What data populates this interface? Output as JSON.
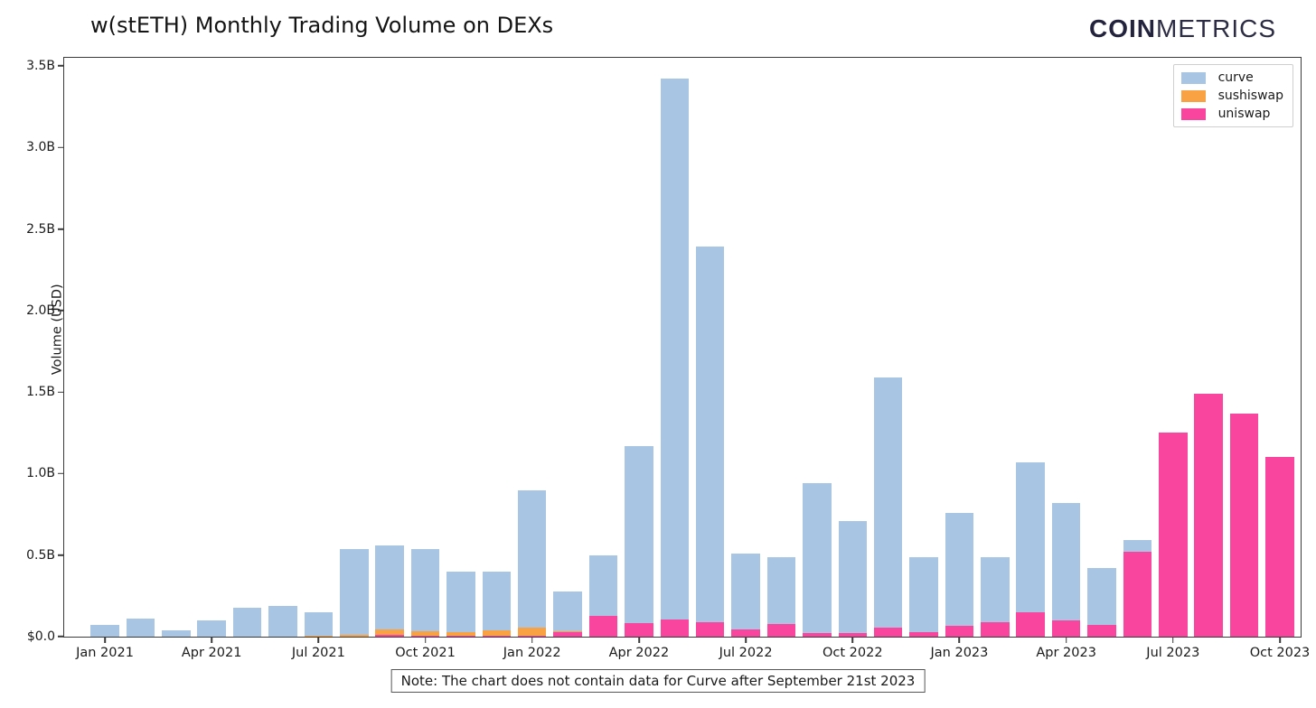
{
  "title": "w(stETH) Monthly Trading Volume on DEXs",
  "logo": {
    "bold": "COIN",
    "light": "METRICS"
  },
  "note": "Note: The chart does not contain data for Curve after September 21st 2023",
  "y_axis": {
    "label": "Volume (USD)",
    "ticks": [
      "$0.0",
      "0.5B",
      "1.0B",
      "1.5B",
      "2.0B",
      "2.5B",
      "3.0B",
      "3.5B"
    ],
    "tick_step_b": 0.5,
    "max_b": 3.55
  },
  "chart_data": {
    "type": "bar",
    "stacked": true,
    "title": "w(stETH) Monthly Trading Volume on DEXs",
    "xlabel": "",
    "ylabel": "Volume (USD)",
    "ylim_billions": [
      0,
      3.55
    ],
    "grid": false,
    "units": "billions USD",
    "categories": [
      "Jan 2021",
      "Feb 2021",
      "Mar 2021",
      "Apr 2021",
      "May 2021",
      "Jun 2021",
      "Jul 2021",
      "Aug 2021",
      "Sep 2021",
      "Oct 2021",
      "Nov 2021",
      "Dec 2021",
      "Jan 2022",
      "Feb 2022",
      "Mar 2022",
      "Apr 2022",
      "May 2022",
      "Jun 2022",
      "Jul 2022",
      "Aug 2022",
      "Sep 2022",
      "Oct 2022",
      "Nov 2022",
      "Dec 2022",
      "Jan 2023",
      "Feb 2023",
      "Mar 2023",
      "Apr 2023",
      "May 2023",
      "Jun 2023",
      "Jul 2023",
      "Aug 2023",
      "Sep 2023",
      "Oct 2023"
    ],
    "x_tick_labels": [
      "Jan 2021",
      "Apr 2021",
      "Jul 2021",
      "Oct 2021",
      "Jan 2022",
      "Apr 2022",
      "Jul 2022",
      "Oct 2022",
      "Jan 2023",
      "Apr 2023",
      "Jul 2023",
      "Oct 2023"
    ],
    "x_tick_every": 3,
    "series": [
      {
        "name": "curve",
        "color": "#a9c5e4",
        "values": [
          0.07,
          0.11,
          0.04,
          0.1,
          0.18,
          0.19,
          0.145,
          0.53,
          0.515,
          0.505,
          0.37,
          0.36,
          0.84,
          0.24,
          0.37,
          1.085,
          3.315,
          2.3,
          0.465,
          0.415,
          0.915,
          0.69,
          1.535,
          0.46,
          0.695,
          0.4,
          0.92,
          0.72,
          0.35,
          0.07,
          0,
          0,
          0,
          0
        ]
      },
      {
        "name": "sushiswap",
        "color": "#f9a244",
        "values": [
          0,
          0,
          0,
          0,
          0,
          0,
          0.005,
          0.01,
          0.035,
          0.03,
          0.025,
          0.035,
          0.05,
          0.005,
          0,
          0,
          0,
          0,
          0,
          0,
          0,
          0,
          0,
          0,
          0,
          0,
          0,
          0,
          0,
          0,
          0,
          0,
          0,
          0
        ]
      },
      {
        "name": "uniswap",
        "color": "#f9459e",
        "values": [
          0,
          0,
          0,
          0,
          0,
          0,
          0,
          0,
          0.01,
          0.005,
          0.005,
          0.005,
          0.005,
          0.03,
          0.13,
          0.085,
          0.105,
          0.09,
          0.045,
          0.075,
          0.025,
          0.02,
          0.055,
          0.03,
          0.065,
          0.09,
          0.15,
          0.1,
          0.07,
          0.52,
          1.25,
          1.49,
          1.37,
          1.1
        ]
      }
    ],
    "stack_order_bottom_to_top": [
      "uniswap",
      "sushiswap",
      "curve"
    ],
    "legend": {
      "position": "upper right",
      "entries": [
        "curve",
        "sushiswap",
        "uniswap"
      ]
    },
    "totals_billions": [
      0.07,
      0.11,
      0.04,
      0.1,
      0.18,
      0.19,
      0.15,
      0.54,
      0.56,
      0.54,
      0.4,
      0.4,
      0.9,
      0.275,
      0.5,
      1.17,
      3.42,
      2.39,
      0.51,
      0.49,
      0.94,
      0.71,
      1.59,
      0.49,
      0.76,
      0.49,
      1.07,
      0.82,
      0.42,
      0.59,
      1.25,
      1.49,
      1.37,
      1.1
    ]
  }
}
